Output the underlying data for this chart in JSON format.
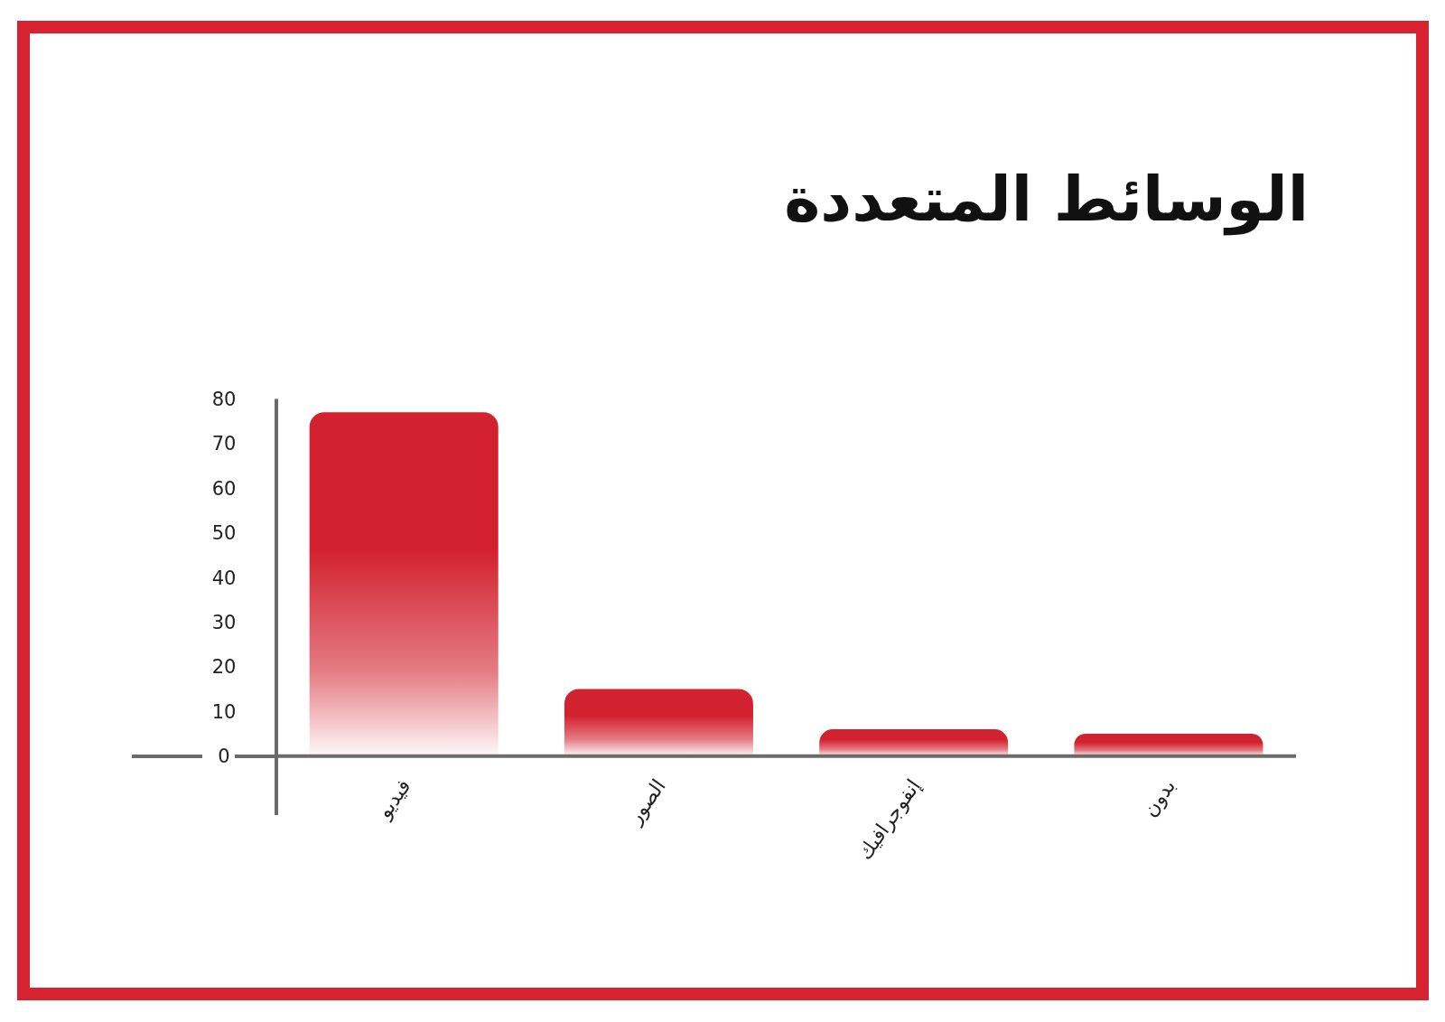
{
  "chart_data": {
    "type": "bar",
    "title": "الوسائط المتعددة",
    "categories": [
      "فيديو",
      "الصور",
      "إنفوجرافيك",
      "بدون"
    ],
    "values": [
      77,
      15,
      6,
      5
    ],
    "color": "#d3222f",
    "ylim": [
      0,
      80
    ],
    "yticks": [
      0,
      10,
      20,
      30,
      40,
      50,
      60,
      70,
      80
    ]
  }
}
